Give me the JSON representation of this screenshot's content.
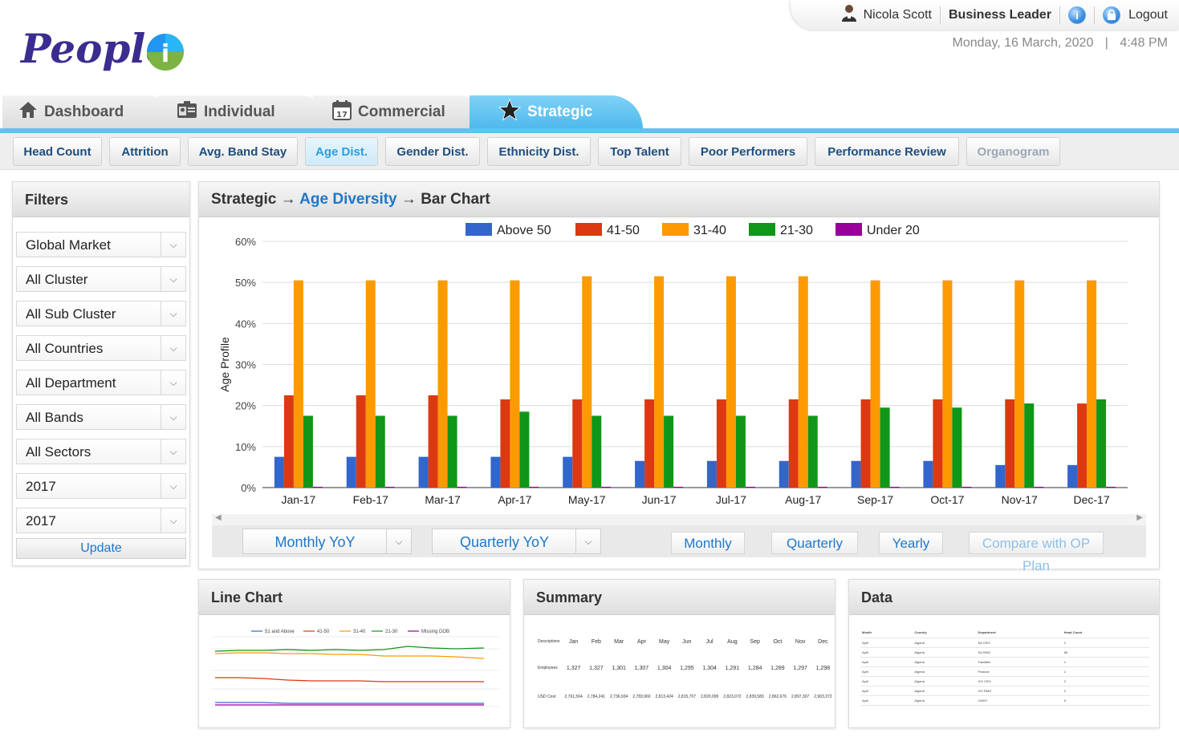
{
  "brand": {
    "logo_text": "People",
    "logo_accent": "i"
  },
  "user": {
    "name": "Nicola Scott",
    "role": "Business Leader",
    "info_icon": "i",
    "logout_label": "Logout"
  },
  "datetime": {
    "date": "Monday, 16 March, 2020",
    "sep": "|",
    "time": "4:48 PM"
  },
  "main_tabs": [
    {
      "label": "Dashboard",
      "icon": "home-icon"
    },
    {
      "label": "Individual",
      "icon": "id-card-icon"
    },
    {
      "label": "Commercial",
      "icon": "calendar-icon"
    },
    {
      "label": "Strategic",
      "icon": "star-icon",
      "active": true
    }
  ],
  "sub_tabs": [
    {
      "label": "Head Count"
    },
    {
      "label": "Attrition"
    },
    {
      "label": "Avg. Band Stay"
    },
    {
      "label": "Age Dist.",
      "active": true
    },
    {
      "label": "Gender Dist."
    },
    {
      "label": "Ethnicity Dist."
    },
    {
      "label": "Top Talent"
    },
    {
      "label": "Poor Performers"
    },
    {
      "label": "Performance Review"
    },
    {
      "label": "Organogram",
      "disabled": true
    }
  ],
  "filters": {
    "title": "Filters",
    "selects": [
      "Global Market",
      "All Cluster",
      "All Sub Cluster",
      "All Countries",
      "All Department",
      "All Bands",
      "All Sectors",
      "2017",
      "2017"
    ],
    "update_label": "Update"
  },
  "chart_panel": {
    "crumb_root": "Strategic",
    "arrow": "→",
    "crumb_link": "Age Diversity",
    "crumb_leaf": "Bar Chart",
    "controls": {
      "monthly_yoy": "Monthly YoY",
      "quarterly_yoy": "Quarterly YoY",
      "monthly": "Monthly",
      "quarterly": "Quarterly",
      "yearly": "Yearly",
      "compare": "Compare with OP Plan"
    }
  },
  "chart_data": {
    "type": "bar",
    "ylabel": "Age Profile",
    "xlabel": "",
    "ylim": [
      0,
      60
    ],
    "yticks": [
      "0%",
      "10%",
      "20%",
      "30%",
      "40%",
      "50%",
      "60%"
    ],
    "grid": true,
    "legend": "top",
    "categories": [
      "Jan-17",
      "Feb-17",
      "Mar-17",
      "Apr-17",
      "May-17",
      "Jun-17",
      "Jul-17",
      "Aug-17",
      "Sep-17",
      "Oct-17",
      "Nov-17",
      "Dec-17"
    ],
    "series": [
      {
        "name": "Above 50",
        "color": "#3366cc",
        "values": [
          7.5,
          7.5,
          7.5,
          7.5,
          7.5,
          6.5,
          6.5,
          6.5,
          6.5,
          6.5,
          5.5,
          5.5
        ]
      },
      {
        "name": "41-50",
        "color": "#dc3912",
        "values": [
          22.5,
          22.5,
          22.5,
          21.5,
          21.5,
          21.5,
          21.5,
          21.5,
          21.5,
          21.5,
          21.5,
          20.5
        ]
      },
      {
        "name": "31-40",
        "color": "#ff9900",
        "values": [
          50.5,
          50.5,
          50.5,
          50.5,
          51.5,
          51.5,
          51.5,
          51.5,
          50.5,
          50.5,
          50.5,
          50.5
        ]
      },
      {
        "name": "21-30",
        "color": "#109618",
        "values": [
          17.5,
          17.5,
          17.5,
          18.5,
          17.5,
          17.5,
          17.5,
          17.5,
          19.5,
          19.5,
          20.5,
          21.5
        ]
      },
      {
        "name": "Under 20",
        "color": "#990099",
        "values": [
          0.2,
          0.2,
          0.2,
          0.2,
          0.2,
          0.2,
          0.2,
          0.2,
          0.2,
          0.2,
          0.2,
          0.2
        ]
      }
    ]
  },
  "line_panel": {
    "title": "Line Chart",
    "legend": [
      "51 and Above",
      "41-50",
      "31-40",
      "21-30",
      "Missing DOB"
    ],
    "colors": [
      "#3366cc",
      "#dc3912",
      "#ff9900",
      "#109618",
      "#990099"
    ]
  },
  "summary_panel": {
    "title": "Summary",
    "header": [
      "Descriptions",
      "Jan",
      "Feb",
      "Mar",
      "Apr",
      "May",
      "Jun",
      "Jul",
      "Aug",
      "Sep",
      "Oct",
      "Nov",
      "Dec"
    ],
    "rows": [
      [
        "Employees",
        "1,327",
        "1,327",
        "1,301",
        "1,307",
        "1,304",
        "1,295",
        "1,304",
        "1,291",
        "1,284",
        "1,289",
        "1,297",
        "1,298"
      ],
      [
        "USD Cost",
        "2,761,564",
        "2,784,241",
        "2,736,934",
        "2,783,960",
        "2,813,424",
        "2,815,707",
        "2,820,099",
        "2,823,072",
        "2,839,583",
        "2,862,676",
        "2,897,307",
        "2,903,372"
      ]
    ]
  },
  "data_panel": {
    "title": "Data",
    "header": [
      "Month",
      "Country",
      "Department",
      "Head Count"
    ],
    "rows": [
      [
        "April",
        "Algeria",
        "SA CRG",
        "2"
      ],
      [
        "April",
        "Algeria",
        "SA RMO",
        "85"
      ],
      [
        "April",
        "Algeria",
        "Facilities",
        "1"
      ],
      [
        "April",
        "Algeria",
        "Finance",
        "1"
      ],
      [
        "April",
        "Algeria",
        "GO CRG",
        "2"
      ],
      [
        "April",
        "Algeria",
        "GO RMO",
        "2"
      ],
      [
        "April",
        "Algeria",
        "24/INT",
        "5"
      ]
    ]
  }
}
